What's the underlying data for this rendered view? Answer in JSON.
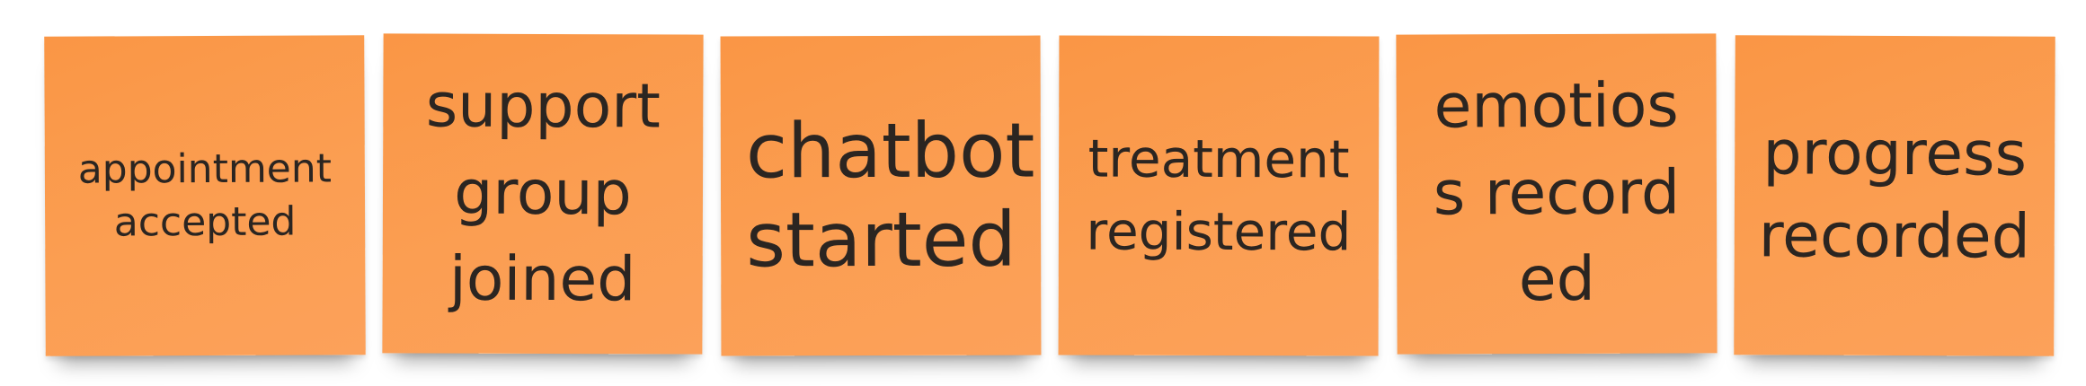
{
  "board": {
    "note_color": "#fb9c4f",
    "text_color": "#2b2521",
    "notes": [
      {
        "text": "appointment accepted"
      },
      {
        "text": "support group joined"
      },
      {
        "text": "chatbot started"
      },
      {
        "text": "treatment registered"
      },
      {
        "text": "emotioss recorded"
      },
      {
        "text": "progress recorded"
      }
    ]
  }
}
